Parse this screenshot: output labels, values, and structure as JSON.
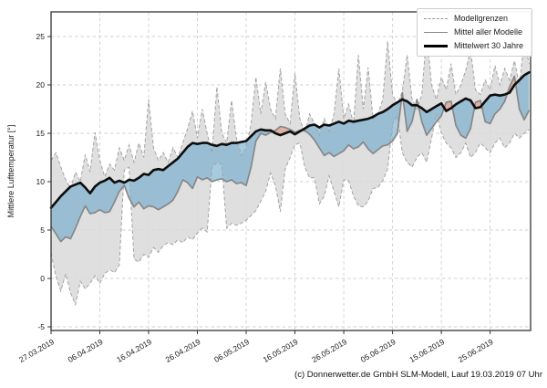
{
  "figure": {
    "ylabel": "Mittlere Lufttemperatur [°]",
    "caption": "(c) Donnerwetter.de GmbH SLM-Modell, Lauf 19.03.2019 07 Uhr",
    "legend": [
      {
        "label": "Modellgrenzen",
        "style": "dashed-gray"
      },
      {
        "label": "Mittel aller Modelle",
        "style": "solid-gray"
      },
      {
        "label": "Mittelwert 30 Jahre",
        "style": "solid-black"
      }
    ]
  },
  "chart_data": {
    "type": "line",
    "title": "",
    "xlabel": "",
    "ylabel": "Mittlere Lufttemperatur [°]",
    "ylim": [
      -5.38,
      27.55
    ],
    "yticks": [
      -5,
      0,
      5,
      10,
      15,
      20,
      25
    ],
    "grid": true,
    "grid_style": "dashed",
    "legend_position": "top-right",
    "x_start_date": "27.03.2019",
    "x_unit": "day index from 27.03.2019",
    "x_range_days": [
      0,
      98.3
    ],
    "x_tick_days": [
      0,
      10,
      20,
      30,
      40,
      50,
      60,
      70,
      80,
      90
    ],
    "x_tick_labels": [
      "27.03.2019",
      "06.04.2019",
      "16.04.2019",
      "26.04.2019",
      "06.05.2019",
      "16.05.2019",
      "26.05.2019",
      "05.06.2019",
      "15.06.2019",
      "25.06.2019"
    ],
    "colors": {
      "band_fill": "#d9d9d9",
      "band_edge": "#a3a3a3",
      "model_mean_line": "#878787",
      "mean30_line": "#0d0d0d",
      "below_fill": "rgba(106,168,205,0.60)",
      "above_fill": "rgba(230,138,115,0.55)",
      "grid": "#cfcfcf",
      "spine": "#333333"
    },
    "series": [
      {
        "name": "Modellgrenzen (untere Grenze)",
        "role": "band_min",
        "values": [
          2.6,
          0.2,
          -1.3,
          0.5,
          -1.5,
          -2.7,
          -0.3,
          -1.1,
          -0.5,
          0.3,
          -0.5,
          0.5,
          0.9,
          0.6,
          1.4,
          11.2,
          11.5,
          2.0,
          1.7,
          2.5,
          2.2,
          3.2,
          2.7,
          3.4,
          3.7,
          3.5,
          4.0,
          3.7,
          4.3,
          4.0,
          4.7,
          5.2,
          4.8,
          11.5,
          12.0,
          11.8,
          5.2,
          5.7,
          5.5,
          5.7,
          6.0,
          6.5,
          7.0,
          8.0,
          9.0,
          10.9,
          9.6,
          6.9,
          11.3,
          12.5,
          13.8,
          14.0,
          11.5,
          10.4,
          10.4,
          7.7,
          8.5,
          10.6,
          9.0,
          7.4,
          10.2,
          10.1,
          8.5,
          7.5,
          7.4,
          8.0,
          9.3,
          9.4,
          10.1,
          11.3,
          16.0,
          16.8,
          13.0,
          12.0,
          11.5,
          12.5,
          13.0,
          12.0,
          14.5,
          17.0,
          15.0,
          14.0,
          13.5,
          12.5,
          13.0,
          14.0,
          12.5,
          13.0,
          14.0,
          13.5,
          13.0,
          14.0,
          14.5,
          13.5,
          14.0,
          15.0,
          14.5,
          15.0,
          15.4
        ]
      },
      {
        "name": "Modellgrenzen (obere Grenze)",
        "role": "band_max",
        "values": [
          12.2,
          13.0,
          11.5,
          10.2,
          9.3,
          11.0,
          10.0,
          12.8,
          11.0,
          15.1,
          12.2,
          10.5,
          11.8,
          11.2,
          13.5,
          12.2,
          13.8,
          12.0,
          14.0,
          12.5,
          18.5,
          13.5,
          12.2,
          13.0,
          12.0,
          13.5,
          12.5,
          14.0,
          15.5,
          17.3,
          14.5,
          17.5,
          15.0,
          13.0,
          19.8,
          15.0,
          14.0,
          18.4,
          14.5,
          12.7,
          13.5,
          16.0,
          20.8,
          17.0,
          20.3,
          17.5,
          16.5,
          21.7,
          17.0,
          16.0,
          21.2,
          16.5,
          15.0,
          17.0,
          16.0,
          14.8,
          16.5,
          15.2,
          17.0,
          21.7,
          16.5,
          18.0,
          16.0,
          23.1,
          17.5,
          21.8,
          16.5,
          17.0,
          18.5,
          24.5,
          19.0,
          18.0,
          19.3,
          23.1,
          18.5,
          17.5,
          19.0,
          25.4,
          20.0,
          18.5,
          20.8,
          19.5,
          22.2,
          19.0,
          20.0,
          21.5,
          23.6,
          19.5,
          19.0,
          20.5,
          19.5,
          22.0,
          20.0,
          21.7,
          20.5,
          22.5,
          20.0,
          24.5,
          22.2
        ]
      },
      {
        "name": "Mittel aller Modelle",
        "role": "model_mean",
        "values": [
          5.4,
          4.6,
          3.8,
          4.3,
          4.1,
          5.2,
          6.4,
          7.5,
          6.7,
          6.8,
          7.1,
          6.8,
          6.9,
          7.9,
          9.0,
          9.6,
          8.3,
          7.4,
          7.9,
          7.2,
          7.5,
          7.4,
          7.1,
          7.4,
          7.7,
          8.1,
          9.0,
          10.2,
          9.9,
          9.3,
          10.5,
          10.2,
          10.4,
          10.0,
          10.2,
          10.3,
          10.0,
          10.2,
          9.8,
          9.9,
          9.6,
          11.5,
          14.2,
          15.0,
          14.8,
          15.1,
          15.3,
          15.7,
          15.6,
          15.4,
          15.1,
          15.3,
          15.3,
          14.9,
          14.3,
          13.5,
          12.7,
          13.0,
          12.6,
          12.9,
          13.2,
          13.8,
          13.4,
          13.6,
          14.1,
          13.4,
          12.9,
          13.3,
          13.7,
          13.8,
          14.2,
          15.0,
          19.2,
          15.2,
          16.2,
          18.5,
          16.2,
          14.8,
          15.5,
          16.2,
          16.8,
          18.2,
          18.3,
          15.8,
          14.8,
          14.5,
          15.5,
          18.2,
          18.4,
          16.2,
          16.0,
          17.0,
          17.5,
          18.3,
          19.8,
          20.9,
          17.5,
          16.4,
          17.4
        ]
      },
      {
        "name": "Mittelwert 30 Jahre",
        "role": "mean_30y",
        "values": [
          7.3,
          7.9,
          8.5,
          9.0,
          9.5,
          9.7,
          9.9,
          9.4,
          8.8,
          9.5,
          9.9,
          10.1,
          10.4,
          9.9,
          10.1,
          9.9,
          10.2,
          10.1,
          10.4,
          10.8,
          10.7,
          11.2,
          11.3,
          11.2,
          11.6,
          12.0,
          12.4,
          13.0,
          13.6,
          14.0,
          13.9,
          14.0,
          14.0,
          13.8,
          13.7,
          13.9,
          13.8,
          14.0,
          14.0,
          14.1,
          14.2,
          14.7,
          15.2,
          15.4,
          15.3,
          15.3,
          15.0,
          14.8,
          15.0,
          15.2,
          14.9,
          15.2,
          15.5,
          15.8,
          15.9,
          15.6,
          15.9,
          15.8,
          16.0,
          16.2,
          16.0,
          16.3,
          16.2,
          16.3,
          16.4,
          16.5,
          16.7,
          17.0,
          17.2,
          17.5,
          17.9,
          18.2,
          18.5,
          18.3,
          17.9,
          17.9,
          17.6,
          17.2,
          17.5,
          17.8,
          18.1,
          17.3,
          17.6,
          18.0,
          18.3,
          18.6,
          18.4,
          17.6,
          17.7,
          18.3,
          18.9,
          19.0,
          18.9,
          19.0,
          19.2,
          20.0,
          20.5,
          21.0,
          21.3
        ]
      }
    ]
  }
}
